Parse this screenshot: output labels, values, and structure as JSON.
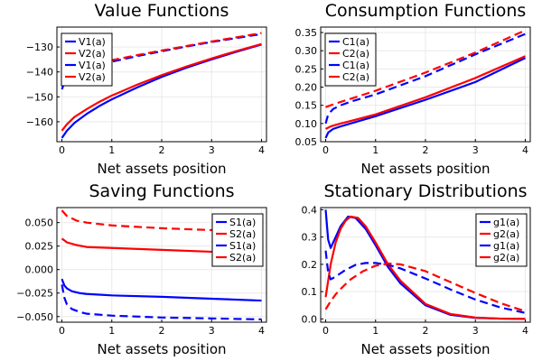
{
  "colors": {
    "blue": "#0000ff",
    "red": "#ff0000"
  },
  "chart_data": [
    {
      "type": "line",
      "title": "Value Functions",
      "xlabel": "Net assets position",
      "ylabel": "",
      "xlim": [
        -0.1,
        4.1
      ],
      "ylim": [
        -168,
        -122
      ],
      "xticks": [
        0,
        1,
        2,
        3,
        4
      ],
      "yticks": [
        -160,
        -150,
        -140,
        -130
      ],
      "grid": true,
      "legend_position": "top-left",
      "series": [
        {
          "name": "V1(a)",
          "color": "blue",
          "dash": false,
          "x": [
            0,
            0.1,
            0.25,
            0.5,
            0.75,
            1,
            1.5,
            2,
            2.5,
            3,
            3.5,
            4
          ],
          "y": [
            -166.5,
            -163.6,
            -160.5,
            -156.8,
            -153.7,
            -151.0,
            -146.3,
            -142.0,
            -138.3,
            -135.0,
            -131.9,
            -129.0
          ]
        },
        {
          "name": "V2(a)",
          "color": "red",
          "dash": false,
          "x": [
            0,
            0.1,
            0.25,
            0.5,
            0.75,
            1,
            1.5,
            2,
            2.5,
            3,
            3.5,
            4
          ],
          "y": [
            -163.6,
            -161.0,
            -158.1,
            -154.9,
            -152.0,
            -149.5,
            -145.2,
            -141.3,
            -137.8,
            -134.6,
            -131.6,
            -128.8
          ]
        },
        {
          "name": "V1(a)",
          "color": "blue",
          "dash": true,
          "x": [
            0,
            0.1,
            0.25,
            0.5,
            1,
            1.5,
            2,
            2.5,
            3,
            3.5,
            4
          ],
          "y": [
            -147.0,
            -141.5,
            -139.5,
            -138.2,
            -135.9,
            -133.7,
            -131.7,
            -129.8,
            -128.0,
            -126.4,
            -124.8
          ]
        },
        {
          "name": "V2(a)",
          "color": "red",
          "dash": true,
          "x": [
            0,
            0.25,
            0.5,
            1,
            1.5,
            2,
            2.5,
            3,
            3.5,
            4
          ],
          "y": [
            -140.0,
            -138.2,
            -137.2,
            -135.3,
            -133.3,
            -131.4,
            -129.6,
            -127.8,
            -126.1,
            -124.4
          ]
        }
      ]
    },
    {
      "type": "line",
      "title": "Consumption Functions",
      "xlabel": "Net assets position",
      "ylabel": "",
      "xlim": [
        -0.1,
        4.1
      ],
      "ylim": [
        0.05,
        0.365
      ],
      "xticks": [
        0,
        1,
        2,
        3,
        4
      ],
      "yticks": [
        0.05,
        0.1,
        0.15,
        0.2,
        0.25,
        0.3,
        0.35
      ],
      "grid": true,
      "legend_position": "top-left",
      "series": [
        {
          "name": "C1(a)",
          "color": "blue",
          "dash": false,
          "x": [
            0,
            0.05,
            0.15,
            0.3,
            0.5,
            1,
            2,
            3,
            4
          ],
          "y": [
            0.06,
            0.075,
            0.085,
            0.092,
            0.1,
            0.12,
            0.165,
            0.214,
            0.28
          ]
        },
        {
          "name": "C2(a)",
          "color": "red",
          "dash": false,
          "x": [
            0,
            0.1,
            0.3,
            0.5,
            1,
            2,
            3,
            4
          ],
          "y": [
            0.085,
            0.092,
            0.1,
            0.107,
            0.125,
            0.172,
            0.225,
            0.285
          ]
        },
        {
          "name": "C1(a)",
          "color": "blue",
          "dash": true,
          "x": [
            0,
            0.05,
            0.15,
            0.3,
            0.5,
            1,
            2,
            3,
            4
          ],
          "y": [
            0.1,
            0.125,
            0.14,
            0.15,
            0.16,
            0.18,
            0.23,
            0.29,
            0.346
          ]
        },
        {
          "name": "C2(a)",
          "color": "red",
          "dash": true,
          "x": [
            0,
            0.2,
            0.5,
            1,
            2,
            3,
            4
          ],
          "y": [
            0.145,
            0.155,
            0.168,
            0.19,
            0.24,
            0.295,
            0.356
          ]
        }
      ]
    },
    {
      "type": "line",
      "title": "Saving Functions",
      "xlabel": "Net assets position",
      "ylabel": "",
      "xlim": [
        -0.1,
        4.1
      ],
      "ylim": [
        -0.056,
        0.066
      ],
      "xticks": [
        0,
        1,
        2,
        3,
        4
      ],
      "yticks": [
        -0.05,
        -0.025,
        0.0,
        0.025,
        0.05
      ],
      "grid": true,
      "legend_position": "top-right",
      "series": [
        {
          "name": "S1(a)",
          "color": "blue",
          "dash": false,
          "x": [
            0,
            0.05,
            0.1,
            0.2,
            0.35,
            0.5,
            1,
            2,
            3,
            4
          ],
          "y": [
            -0.01,
            -0.017,
            -0.02,
            -0.023,
            -0.025,
            -0.026,
            -0.0275,
            -0.029,
            -0.031,
            -0.033
          ]
        },
        {
          "name": "S2(a)",
          "color": "red",
          "dash": false,
          "x": [
            0,
            0.1,
            0.3,
            0.5,
            1,
            2,
            3,
            4
          ],
          "y": [
            0.033,
            0.029,
            0.026,
            0.024,
            0.023,
            0.021,
            0.019,
            0.017
          ]
        },
        {
          "name": "S1(a)",
          "color": "blue",
          "dash": true,
          "x": [
            0,
            0.05,
            0.1,
            0.2,
            0.35,
            0.5,
            1,
            2,
            3,
            4
          ],
          "y": [
            -0.016,
            -0.03,
            -0.037,
            -0.042,
            -0.045,
            -0.047,
            -0.049,
            -0.051,
            -0.052,
            -0.053
          ]
        },
        {
          "name": "S2(a)",
          "color": "red",
          "dash": true,
          "x": [
            0,
            0.1,
            0.3,
            0.5,
            1,
            2,
            3,
            4
          ],
          "y": [
            0.063,
            0.057,
            0.052,
            0.05,
            0.047,
            0.044,
            0.042,
            0.041
          ]
        }
      ]
    },
    {
      "type": "line",
      "title": "Stationary Distributions",
      "xlabel": "Net assets position",
      "ylabel": "",
      "xlim": [
        -0.1,
        4.1
      ],
      "ylim": [
        -0.012,
        0.408
      ],
      "xticks": [
        0,
        1,
        2,
        3,
        4
      ],
      "yticks": [
        0.0,
        0.1,
        0.2,
        0.3,
        0.4
      ],
      "grid": true,
      "legend_position": "top-right",
      "series": [
        {
          "name": "g1(a)",
          "color": "blue",
          "dash": false,
          "x": [
            0,
            0.05,
            0.1,
            0.2,
            0.3,
            0.45,
            0.6,
            0.8,
            1.0,
            1.25,
            1.5,
            2.0,
            2.5,
            3.0,
            3.5,
            4.0
          ],
          "y": [
            0.4,
            0.29,
            0.26,
            0.3,
            0.34,
            0.375,
            0.37,
            0.33,
            0.27,
            0.19,
            0.13,
            0.05,
            0.015,
            0.004,
            0.001,
            0.0
          ]
        },
        {
          "name": "g2(a)",
          "color": "red",
          "dash": false,
          "x": [
            0,
            0.05,
            0.1,
            0.2,
            0.3,
            0.4,
            0.5,
            0.65,
            0.8,
            1.0,
            1.25,
            1.5,
            2.0,
            2.5,
            3.0,
            3.5,
            4.0
          ],
          "y": [
            0.08,
            0.14,
            0.2,
            0.28,
            0.33,
            0.36,
            0.375,
            0.37,
            0.34,
            0.28,
            0.2,
            0.14,
            0.055,
            0.018,
            0.005,
            0.001,
            0.0
          ]
        },
        {
          "name": "g1(a)",
          "color": "blue",
          "dash": true,
          "x": [
            0,
            0.05,
            0.1,
            0.2,
            0.4,
            0.6,
            0.8,
            1.0,
            1.25,
            1.5,
            2.0,
            2.5,
            3.0,
            3.5,
            4.0
          ],
          "y": [
            0.25,
            0.17,
            0.145,
            0.155,
            0.18,
            0.198,
            0.205,
            0.205,
            0.198,
            0.185,
            0.148,
            0.108,
            0.071,
            0.042,
            0.022
          ]
        },
        {
          "name": "g2(a)",
          "color": "red",
          "dash": true,
          "x": [
            0,
            0.05,
            0.1,
            0.2,
            0.3,
            0.5,
            0.75,
            1.0,
            1.25,
            1.5,
            2.0,
            2.5,
            3.0,
            3.5,
            4.0
          ],
          "y": [
            0.035,
            0.05,
            0.065,
            0.09,
            0.11,
            0.145,
            0.175,
            0.195,
            0.203,
            0.2,
            0.175,
            0.135,
            0.095,
            0.058,
            0.028
          ]
        }
      ]
    }
  ]
}
